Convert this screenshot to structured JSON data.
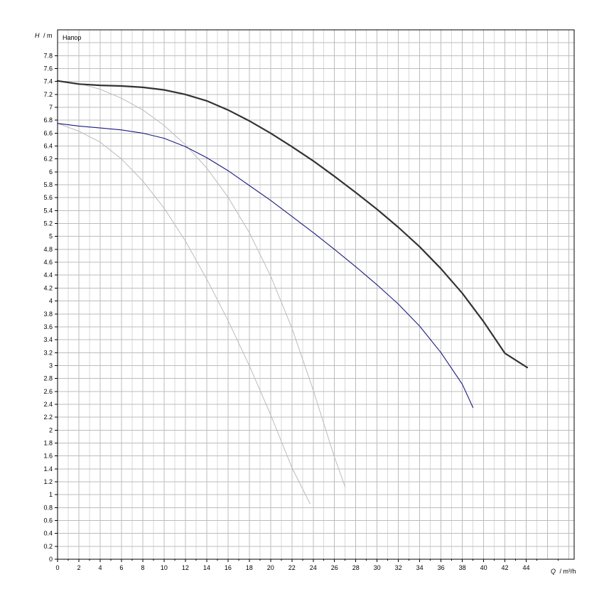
{
  "chart_data": {
    "type": "line",
    "title": "Напор",
    "ylabel_symbol": "H",
    "ylabel_unit": "/ m",
    "xlabel_symbol": "Q",
    "xlabel_unit": "/ m³/h",
    "xlim": [
      0,
      48.5
    ],
    "ylim": [
      0,
      8.2
    ],
    "x_ticks": [
      0,
      2,
      4,
      6,
      8,
      10,
      12,
      14,
      16,
      18,
      20,
      22,
      24,
      26,
      28,
      30,
      32,
      34,
      36,
      38,
      40,
      42,
      44
    ],
    "y_ticks": [
      0,
      0.2,
      0.4,
      0.6,
      0.8,
      1,
      1.2,
      1.4,
      1.6,
      1.8,
      2,
      2.2,
      2.4,
      2.6,
      2.8,
      3,
      3.2,
      3.4,
      3.6,
      3.8,
      4,
      4.2,
      4.4,
      4.6,
      4.8,
      5,
      5.2,
      5.4,
      5.6,
      5.8,
      6,
      6.2,
      6.4,
      6.6,
      6.8,
      7,
      7.2,
      7.4,
      7.6,
      7.8
    ],
    "x_tick_labels": [
      "0",
      "2",
      "4",
      "6",
      "8",
      "10",
      "12",
      "14",
      "16",
      "18",
      "20",
      "22",
      "24",
      "26",
      "28",
      "30",
      "32",
      "34",
      "36",
      "38",
      "40",
      "42",
      "44"
    ],
    "y_tick_labels": [
      "0",
      "0.2",
      "0.4",
      "0.6",
      "0.8",
      "1",
      "1.2",
      "1.4",
      "1.6",
      "1.8",
      "2",
      "2.2",
      "2.4",
      "2.6",
      "2.8",
      "3",
      "3.2",
      "3.4",
      "3.6",
      "3.8",
      "4",
      "4.2",
      "4.4",
      "4.6",
      "4.8",
      "5",
      "5.2",
      "5.4",
      "5.6",
      "5.8",
      "6",
      "6.2",
      "6.4",
      "6.6",
      "6.8",
      "7",
      "7.2",
      "7.4",
      "7.6",
      "7.8"
    ],
    "grid": true,
    "grid_x_step": 1,
    "grid_y_step": 0.2,
    "series": [
      {
        "color": "#333333",
        "points": [
          [
            0,
            7.41
          ],
          [
            2,
            7.36
          ],
          [
            4,
            7.34
          ],
          [
            6,
            7.33
          ],
          [
            8,
            7.31
          ],
          [
            10,
            7.27
          ],
          [
            12,
            7.2
          ],
          [
            14,
            7.1
          ],
          [
            16,
            6.96
          ],
          [
            18,
            6.79
          ],
          [
            20,
            6.6
          ],
          [
            22,
            6.39
          ],
          [
            24,
            6.17
          ],
          [
            26,
            5.93
          ],
          [
            28,
            5.68
          ],
          [
            30,
            5.42
          ],
          [
            32,
            5.14
          ],
          [
            34,
            4.84
          ],
          [
            36,
            4.5
          ],
          [
            38,
            4.12
          ],
          [
            40,
            3.68
          ],
          [
            42,
            3.19
          ],
          [
            44.1,
            2.97
          ]
        ]
      },
      {
        "color": "#1a1a80",
        "points": [
          [
            0,
            6.75
          ],
          [
            2,
            6.71
          ],
          [
            4,
            6.68
          ],
          [
            6,
            6.65
          ],
          [
            8,
            6.6
          ],
          [
            10,
            6.52
          ],
          [
            12,
            6.39
          ],
          [
            14,
            6.22
          ],
          [
            16,
            6.02
          ],
          [
            18,
            5.79
          ],
          [
            20,
            5.56
          ],
          [
            22,
            5.31
          ],
          [
            24,
            5.06
          ],
          [
            26,
            4.8
          ],
          [
            28,
            4.53
          ],
          [
            30,
            4.25
          ],
          [
            32,
            3.95
          ],
          [
            34,
            3.61
          ],
          [
            36,
            3.2
          ],
          [
            38,
            2.71
          ],
          [
            39,
            2.35
          ]
        ]
      },
      {
        "color": "#bbbbbb",
        "points": [
          [
            0,
            7.41
          ],
          [
            2,
            7.37
          ],
          [
            4,
            7.28
          ],
          [
            6,
            7.14
          ],
          [
            8,
            6.96
          ],
          [
            10,
            6.72
          ],
          [
            12,
            6.42
          ],
          [
            14,
            6.06
          ],
          [
            16,
            5.61
          ],
          [
            18,
            5.06
          ],
          [
            20,
            4.39
          ],
          [
            22,
            3.58
          ],
          [
            24,
            2.62
          ],
          [
            26,
            1.58
          ],
          [
            27,
            1.12
          ]
        ]
      },
      {
        "color": "#bbbbbb",
        "points": [
          [
            0,
            6.75
          ],
          [
            2,
            6.63
          ],
          [
            4,
            6.46
          ],
          [
            6,
            6.2
          ],
          [
            8,
            5.86
          ],
          [
            10,
            5.44
          ],
          [
            12,
            4.93
          ],
          [
            14,
            4.34
          ],
          [
            16,
            3.7
          ],
          [
            18,
            3.0
          ],
          [
            20,
            2.24
          ],
          [
            22,
            1.42
          ],
          [
            23.7,
            0.86
          ]
        ]
      }
    ]
  }
}
